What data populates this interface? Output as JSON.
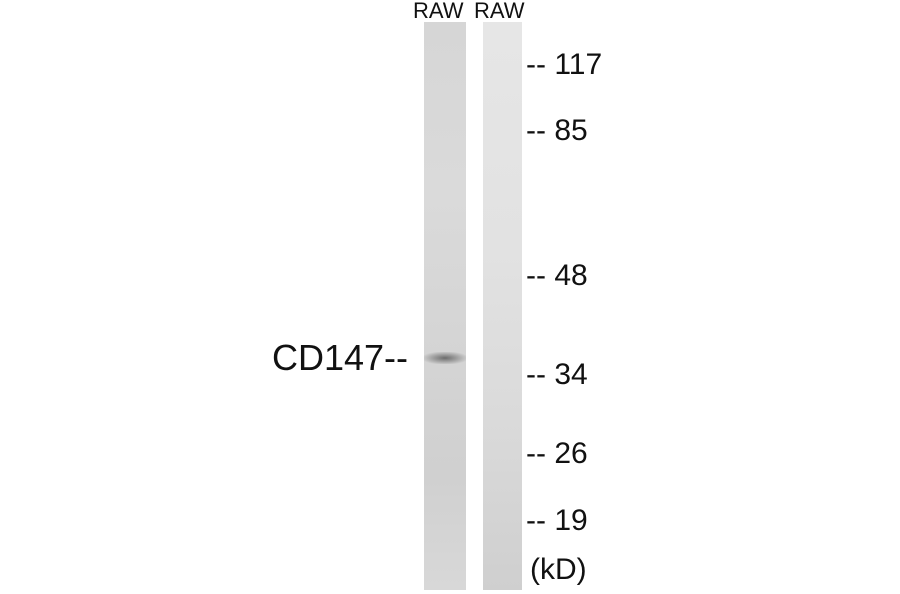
{
  "lanes": [
    {
      "label": "RAW"
    },
    {
      "label": "RAW"
    }
  ],
  "target": {
    "label": "CD147--"
  },
  "markers": [
    {
      "label": "-- 117"
    },
    {
      "label": "-- 85"
    },
    {
      "label": "-- 48"
    },
    {
      "label": "-- 34"
    },
    {
      "label": "-- 26"
    },
    {
      "label": "-- 19"
    }
  ],
  "unit": "(kD)"
}
